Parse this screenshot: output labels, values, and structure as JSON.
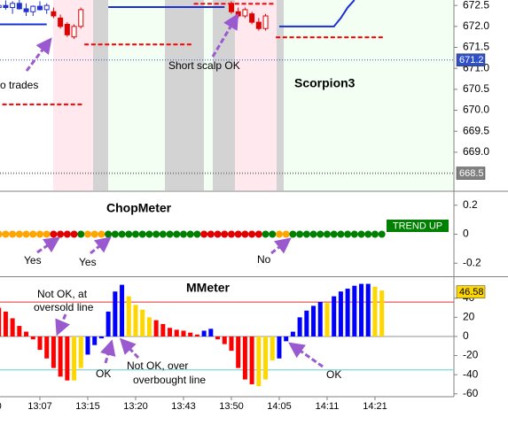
{
  "chart_data": [
    {
      "type": "candlestick",
      "title": "Scorpion3",
      "annotations": [
        "o trades",
        "Short scalp OK"
      ],
      "ylim": [
        668.09,
        672.63
      ],
      "yticks": [
        {
          "value": 669,
          "label": "669.0"
        },
        669.5,
        {
          "value": 670,
          "label": "670.0"
        },
        670.5,
        {
          "value": 671,
          "label": "671.0"
        },
        671.5,
        {
          "value": 672,
          "label": "672.0"
        },
        672.5
      ],
      "series": [
        {
          "type": "candlestick",
          "color": "#2233cc",
          "open": [
            672.45,
            672.5,
            672.45,
            672.55,
            672.42,
            672.35,
            672.48,
            672.4,
            null,
            null,
            null,
            null,
            null,
            null,
            null,
            null,
            null,
            null,
            null,
            null,
            null,
            null,
            null,
            null,
            null,
            null,
            null,
            null,
            null,
            null,
            null,
            null,
            null,
            null,
            null,
            null,
            null,
            null,
            null,
            null,
            null,
            null,
            null,
            null,
            null,
            null,
            null,
            null,
            null,
            null,
            null,
            null,
            null,
            null,
            null,
            null,
            null
          ],
          "high": [
            672.6,
            672.62,
            672.6,
            672.63,
            672.55,
            672.5,
            672.6,
            672.55,
            null,
            null,
            null,
            null,
            null,
            null,
            null,
            null,
            null,
            null,
            null,
            null,
            null,
            null,
            null,
            null,
            null,
            null,
            null,
            null,
            null,
            null,
            null,
            null,
            null,
            null,
            null,
            null,
            null,
            null,
            null,
            null,
            null,
            null,
            null,
            null,
            null,
            null,
            null,
            null,
            null,
            null,
            null,
            null,
            null,
            null,
            null,
            null,
            null
          ],
          "low": [
            672.35,
            672.4,
            672.3,
            672.4,
            672.25,
            672.25,
            672.38,
            672.3,
            null,
            null,
            null,
            null,
            null,
            null,
            null,
            null,
            null,
            null,
            null,
            null,
            null,
            null,
            null,
            null,
            null,
            null,
            null,
            null,
            null,
            null,
            null,
            null,
            null,
            null,
            null,
            null,
            null,
            null,
            null,
            null,
            null,
            null,
            null,
            null,
            null,
            null,
            null,
            null,
            null,
            null,
            null,
            null,
            null,
            null,
            null,
            null,
            null
          ],
          "close": [
            672.5,
            672.45,
            672.55,
            672.42,
            672.35,
            672.48,
            672.4,
            672.5,
            null,
            null,
            null,
            null,
            null,
            null,
            null,
            null,
            null,
            null,
            null,
            null,
            null,
            null,
            null,
            null,
            null,
            null,
            null,
            null,
            null,
            null,
            null,
            null,
            null,
            null,
            null,
            null,
            null,
            null,
            null,
            null,
            null,
            null,
            null,
            null,
            null,
            null,
            null,
            null,
            null,
            null,
            null,
            null,
            null,
            null,
            null,
            null,
            null
          ]
        },
        {
          "type": "candlestick",
          "color": "#e00000",
          "open": [
            null,
            null,
            null,
            null,
            null,
            null,
            null,
            null,
            672.35,
            672.2,
            672.05,
            671.75,
            672.0,
            null,
            null,
            null,
            null,
            null,
            null,
            null,
            null,
            null,
            null,
            null,
            null,
            null,
            null,
            null,
            null,
            null,
            null,
            null,
            null,
            null,
            672.55,
            672.35,
            672.25,
            672.3,
            672.1,
            671.95,
            null,
            null,
            null,
            null,
            null,
            null,
            null,
            null,
            null,
            null,
            null,
            null,
            null,
            null,
            null,
            null,
            null
          ],
          "high": [
            null,
            null,
            null,
            null,
            null,
            null,
            null,
            null,
            672.45,
            672.28,
            672.1,
            672.05,
            672.45,
            null,
            null,
            null,
            null,
            null,
            null,
            null,
            null,
            null,
            null,
            null,
            null,
            null,
            null,
            null,
            null,
            null,
            null,
            null,
            null,
            null,
            672.6,
            672.45,
            672.45,
            672.35,
            672.2,
            672.3,
            null,
            null,
            null,
            null,
            null,
            null,
            null,
            null,
            null,
            null,
            null,
            null,
            null,
            null,
            null,
            null,
            null
          ],
          "low": [
            null,
            null,
            null,
            null,
            null,
            null,
            null,
            null,
            672.2,
            671.95,
            671.75,
            671.7,
            671.95,
            null,
            null,
            null,
            null,
            null,
            null,
            null,
            null,
            null,
            null,
            null,
            null,
            null,
            null,
            null,
            null,
            null,
            null,
            null,
            null,
            null,
            672.3,
            672.2,
            672.2,
            672.05,
            671.9,
            671.9,
            null,
            null,
            null,
            null,
            null,
            null,
            null,
            null,
            null,
            null,
            null,
            null,
            null,
            null,
            null,
            null,
            null
          ],
          "close": [
            null,
            null,
            null,
            null,
            null,
            null,
            null,
            null,
            672.25,
            672.0,
            671.8,
            672.0,
            672.4,
            null,
            null,
            null,
            null,
            null,
            null,
            null,
            null,
            null,
            null,
            null,
            null,
            null,
            null,
            null,
            null,
            null,
            null,
            null,
            null,
            null,
            672.35,
            672.25,
            672.4,
            672.1,
            671.95,
            672.25,
            null,
            null,
            null,
            null,
            null,
            null,
            null,
            null,
            null,
            null,
            null,
            null,
            null,
            null,
            null,
            null,
            null
          ]
        },
        {
          "type": "line",
          "color": "#1a2fd6",
          "values": [
            672.05,
            672.05,
            672.05,
            672.05,
            672.05,
            672.05,
            672.05,
            672.05,
            null,
            null,
            null,
            null,
            null,
            null,
            null,
            null,
            672.46,
            672.46,
            672.46,
            672.46,
            672.46,
            672.46,
            672.46,
            672.46,
            672.46,
            672.46,
            672.46,
            672.46,
            672.46,
            672.46,
            672.46,
            672.46,
            672.46,
            672.46,
            null,
            null,
            null,
            null,
            null,
            null,
            null,
            672.0,
            672.0,
            672.0,
            672.0,
            672.0,
            672.0,
            672.0,
            672.0,
            672.0,
            672.2,
            672.45,
            672.63,
            null,
            null,
            null,
            null
          ]
        },
        {
          "type": "step",
          "color": "#ff0000",
          "values": [
            670.14,
            670.14,
            670.14,
            670.14,
            670.14,
            670.14,
            670.14,
            670.14,
            670.14,
            670.14,
            670.14,
            670.14,
            670.14,
            671.57,
            671.57,
            671.57,
            671.57,
            671.57,
            671.57,
            671.57,
            671.57,
            671.57,
            671.57,
            671.57,
            671.57,
            671.57,
            671.57,
            671.57,
            671.57,
            672.54,
            672.54,
            672.54,
            672.54,
            672.54,
            672.54,
            672.54,
            672.54,
            672.54,
            672.54,
            672.54,
            672.54,
            671.74,
            671.74,
            671.74,
            671.74,
            671.74,
            671.74,
            671.74,
            671.74,
            671.74,
            671.74,
            671.74,
            671.74,
            671.74,
            671.74,
            671.74,
            671.74
          ]
        }
      ],
      "markers": [
        {
          "value": 671.2,
          "color": "#3050c8"
        },
        {
          "value": 668.5,
          "color": "#808080"
        }
      ]
    },
    {
      "type": "dot",
      "title": "ChopMeter",
      "annotations": [
        "Yes",
        "Yes",
        "No"
      ],
      "status": "TREND UP",
      "ylim": [
        -0.29,
        0.29
      ],
      "yticks": [
        0.2,
        0,
        -0.2
      ],
      "values": [
        0,
        0,
        0,
        0,
        0,
        0,
        0,
        0,
        0,
        0,
        0,
        0,
        0,
        0,
        0,
        0,
        0,
        0,
        0,
        0,
        0,
        0,
        0,
        0,
        0,
        0,
        0,
        0,
        0,
        0,
        0,
        0,
        0,
        0,
        0,
        0,
        0,
        0,
        0,
        0,
        0,
        0,
        0,
        0,
        0,
        0,
        0,
        0,
        0,
        0,
        0,
        0,
        0,
        0,
        0,
        0,
        0
      ],
      "colors": [
        "#ffa500",
        "#ffa500",
        "#ffa500",
        "#ffa500",
        "#ffa500",
        "#ffa500",
        "#ffa500",
        "#ffa500",
        "#e00000",
        "#e00000",
        "#e00000",
        "#e00000",
        "#008000",
        "#ffa500",
        "#ffa500",
        "#ffa500",
        "#008000",
        "#008000",
        "#008000",
        "#008000",
        "#008000",
        "#008000",
        "#008000",
        "#008000",
        "#008000",
        "#008000",
        "#008000",
        "#008000",
        "#008000",
        "#008000",
        "#e00000",
        "#e00000",
        "#e00000",
        "#e00000",
        "#e00000",
        "#e00000",
        "#e00000",
        "#e00000",
        "#e00000",
        "#008000",
        "#008000",
        "#ffa500",
        "#ffa500",
        "#008000",
        "#008000",
        "#008000",
        "#008000",
        "#008000",
        "#008000",
        "#008000",
        "#008000",
        "#008000",
        "#008000",
        "#008000",
        "#008000",
        "#008000",
        "#008000"
      ]
    },
    {
      "type": "bar",
      "title": "MMeter",
      "annotations": [
        "Not OK, at",
        "oversold line",
        "OK",
        "Not OK, over",
        "overbought line",
        "OK"
      ],
      "categories": [
        "0",
        null,
        null,
        null,
        null,
        null,
        "13:07",
        null,
        null,
        null,
        null,
        null,
        null,
        "13:15",
        null,
        null,
        null,
        null,
        null,
        null,
        "13:20",
        null,
        null,
        null,
        null,
        null,
        null,
        "13:43",
        null,
        null,
        null,
        null,
        null,
        null,
        "13:50",
        null,
        null,
        null,
        null,
        null,
        null,
        "14:05",
        null,
        null,
        null,
        null,
        null,
        null,
        "14:11",
        null,
        null,
        null,
        null,
        null,
        null,
        "14:21",
        null
      ],
      "ylim": [
        -63,
        62
      ],
      "yticks": [
        40,
        20,
        0,
        -20,
        -40,
        -60
      ],
      "values": [
        30,
        26,
        19,
        11,
        5,
        -3,
        -14,
        -23,
        -33,
        -42,
        -46,
        -46,
        -33,
        -19,
        -9,
        -2,
        26,
        47,
        54,
        42,
        33,
        28,
        20,
        17,
        13,
        9,
        7,
        6,
        4,
        2,
        6,
        8,
        -3,
        -8,
        -15,
        -33,
        -45,
        -50,
        -52,
        -45,
        -25,
        -23,
        -5,
        5,
        20,
        27,
        32,
        36,
        35,
        42,
        47,
        50,
        53,
        55,
        55,
        52,
        48
      ],
      "colors": [
        "#ff0000",
        "#ff0000",
        "#ff0000",
        "#ff0000",
        "#ff0000",
        "#ff0000",
        "#ff0000",
        "#ff0000",
        "#ff0000",
        "#ff0000",
        "#ff0000",
        "#ffd700",
        "#ffd700",
        "#0000ff",
        "#0000ff",
        "#0000ff",
        "#0000ff",
        "#0000ff",
        "#0000ff",
        "#ffd700",
        "#ffd700",
        "#ffd700",
        "#ffd700",
        "#ff0000",
        "#ff0000",
        "#ff0000",
        "#ff0000",
        "#ff0000",
        "#ff0000",
        "#ff0000",
        "#0000ff",
        "#0000ff",
        "#ff0000",
        "#ff0000",
        "#ff0000",
        "#ff0000",
        "#ff0000",
        "#ff0000",
        "#ffd700",
        "#ffd700",
        "#ffd700",
        "#0000ff",
        "#0000ff",
        "#0000ff",
        "#0000ff",
        "#0000ff",
        "#0000ff",
        "#0000ff",
        "#ffd700",
        "#0000ff",
        "#0000ff",
        "#0000ff",
        "#0000ff",
        "#0000ff",
        "#0000ff",
        "#ffd700",
        "#ffd700"
      ],
      "hlines": [
        {
          "value": 36,
          "color": "#e03030"
        },
        {
          "value": 0,
          "color": "#909090"
        },
        {
          "value": -35,
          "color": "#66cccc"
        }
      ],
      "markers": [
        {
          "value": 46.58,
          "color": "#ffd700"
        }
      ]
    }
  ]
}
